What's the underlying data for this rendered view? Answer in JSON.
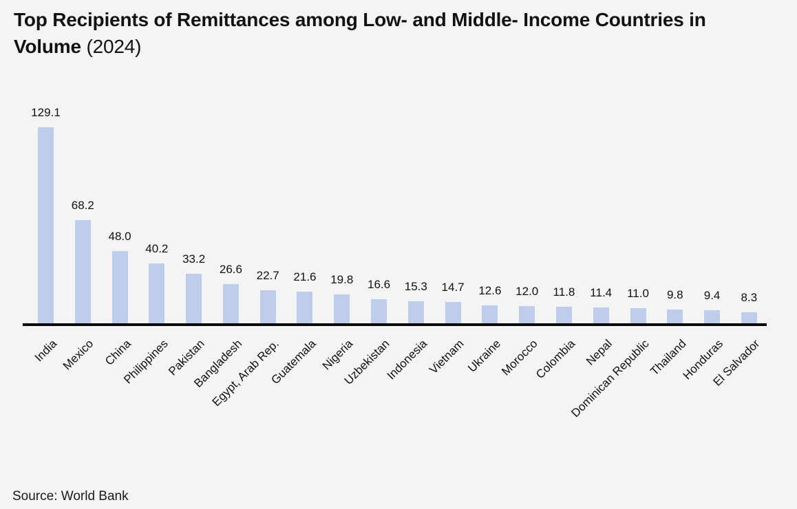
{
  "header": {
    "line1": "Top Recipients of Remittances among Low- and Middle- Income",
    "line2_bold": "Countries in Volume",
    "line2_suffix": "(2024)"
  },
  "footer": {
    "source": "Source: World Bank"
  },
  "chart_data": {
    "type": "bar",
    "title": "Top Recipients of Remittances among Low- and Middle- Income Countries in Volume (2024)",
    "xlabel": "",
    "ylabel": "",
    "ylim": [
      0,
      135
    ],
    "grid": false,
    "legend": "none",
    "categories": [
      "India",
      "Mexico",
      "China",
      "Philippines",
      "Pakistan",
      "Bangladesh",
      "Egypt, Arab Rep.",
      "Guatemala",
      "Nigeria",
      "Uzbekistan",
      "Indonesia",
      "Vietnam",
      "Ukraine",
      "Morocco",
      "Colombia",
      "Nepal",
      "Dominican Republic",
      "Thailand",
      "Honduras",
      "El Salvador"
    ],
    "values": [
      129.1,
      68.2,
      48.0,
      40.2,
      33.2,
      26.6,
      22.7,
      21.6,
      19.8,
      16.6,
      15.3,
      14.7,
      12.6,
      12.0,
      11.8,
      11.4,
      11.0,
      9.8,
      9.4,
      8.3
    ],
    "value_labels": [
      "129.1",
      "68.2",
      "48.0",
      "40.2",
      "33.2",
      "26.6",
      "22.7",
      "21.6",
      "19.8",
      "16.6",
      "15.3",
      "14.7",
      "12.6",
      "12.0",
      "11.8",
      "11.4",
      "11.0",
      "9.8",
      "9.4",
      "8.3"
    ],
    "colors": {
      "bar": "#bfcdec",
      "axis": "#0b0b0b",
      "background": "#f4f4f6",
      "text": "#111111"
    }
  }
}
